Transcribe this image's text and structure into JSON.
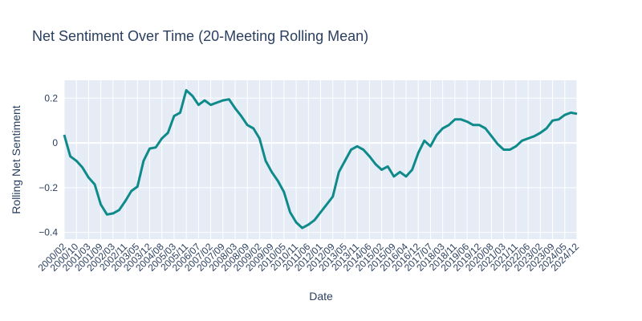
{
  "chart_data": {
    "type": "line",
    "title": "Net Sentiment Over Time (20-Meeting Rolling Mean)",
    "x_label": "Date",
    "y_label": "Rolling Net Sentiment",
    "categories": [
      "2000/02",
      null,
      "2000/10",
      null,
      "2001/03",
      null,
      "2001/09",
      null,
      "2002/03",
      null,
      "2002/11",
      null,
      "2003/05",
      null,
      "2003/12",
      null,
      "2004/08",
      null,
      "2005/03",
      null,
      "2005/11",
      null,
      "2006/07",
      null,
      "2007/02",
      null,
      "2007/09",
      null,
      "2008/03",
      null,
      "2008/09",
      null,
      "2009/02",
      null,
      "2009/09",
      null,
      "2010/05",
      null,
      "2010/11",
      null,
      "2011/06",
      null,
      "2012/01",
      null,
      "2012/09",
      null,
      "2013/05",
      null,
      "2013/11",
      null,
      "2014/06",
      null,
      "2015/02",
      null,
      "2015/09",
      null,
      "2016/04",
      null,
      "2016/12",
      null,
      "2017/07",
      null,
      "2018/03",
      null,
      "2018/11",
      null,
      "2019/06",
      null,
      "2019/12",
      null,
      "2020/08",
      null,
      "2021/03",
      null,
      "2021/11",
      null,
      "2022/06",
      null,
      "2023/02",
      null,
      "2023/09",
      null,
      "2024/05",
      null,
      "2024/12"
    ],
    "series": [
      {
        "name": "Rolling Net Sentiment",
        "color": "#0f8a8a",
        "values": [
          0.036,
          -0.06,
          -0.08,
          -0.11,
          -0.155,
          -0.185,
          -0.275,
          -0.32,
          -0.315,
          -0.3,
          -0.26,
          -0.215,
          -0.195,
          -0.08,
          -0.025,
          -0.02,
          0.02,
          0.045,
          0.12,
          0.135,
          0.235,
          0.21,
          0.17,
          0.19,
          0.17,
          0.18,
          0.19,
          0.195,
          0.155,
          0.12,
          0.08,
          0.065,
          0.02,
          -0.08,
          -0.13,
          -0.17,
          -0.22,
          -0.31,
          -0.355,
          -0.38,
          -0.365,
          -0.345,
          -0.31,
          -0.275,
          -0.24,
          -0.13,
          -0.08,
          -0.03,
          -0.015,
          -0.03,
          -0.06,
          -0.095,
          -0.12,
          -0.105,
          -0.15,
          -0.13,
          -0.15,
          -0.12,
          -0.045,
          0.01,
          -0.015,
          0.035,
          0.065,
          0.08,
          0.105,
          0.105,
          0.095,
          0.08,
          0.08,
          0.065,
          0.03,
          -0.005,
          -0.03,
          -0.03,
          -0.015,
          0.01,
          0.02,
          0.03,
          0.045,
          0.065,
          0.1,
          0.105,
          0.125,
          0.135,
          0.13
        ]
      }
    ],
    "ylim": [
      -0.43,
      0.28
    ],
    "yticks": [
      {
        "value": -0.4,
        "label": "−0.4"
      },
      {
        "value": -0.2,
        "label": "−0.2"
      },
      0,
      0.2
    ],
    "grid": true
  }
}
